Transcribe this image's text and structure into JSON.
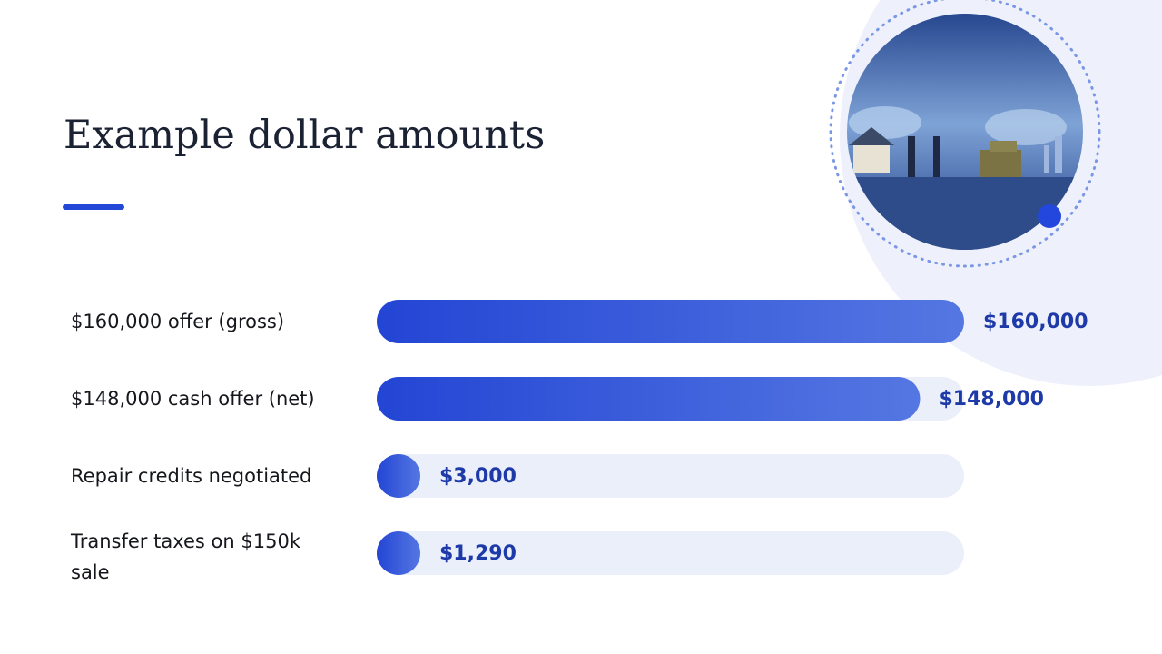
{
  "title": "Example dollar amounts",
  "chart_data": {
    "type": "bar",
    "orientation": "horizontal",
    "categories": [
      "$160,000 offer (gross)",
      "$148,000 cash offer (net)",
      "Repair credits negotiated",
      "Transfer taxes on $150k sale"
    ],
    "values": [
      160000,
      148000,
      3000,
      1290
    ],
    "value_labels": [
      "$160,000",
      "$148,000",
      "$3,000",
      "$1,290"
    ],
    "color": "#2447d6",
    "xlim": [
      0,
      160000
    ]
  }
}
